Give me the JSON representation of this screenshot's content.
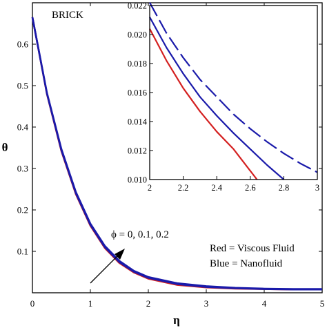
{
  "chart_data": [
    {
      "type": "line",
      "role": "main",
      "annotation_label": "BRICK",
      "xlabel": "η",
      "ylabel": "θ",
      "xlim": [
        0,
        5
      ],
      "ylim": [
        0,
        0.7
      ],
      "xticks": [
        "0",
        "1",
        "2",
        "3",
        "4",
        "5"
      ],
      "yticks": [
        "0.1",
        "0.2",
        "0.3",
        "0.4",
        "0.5",
        "0.6"
      ],
      "grid": false,
      "annotations": {
        "phi_label": "ϕ = 0, 0.1, 0.2",
        "legend_red": "Red = Viscous Fluid",
        "legend_blue": "Blue = Nanofluid"
      },
      "series": [
        {
          "color": "#d42020",
          "style": "solid",
          "x": [
            0,
            0.25,
            0.5,
            0.75,
            1.0,
            1.25,
            1.5,
            1.75,
            2.0,
            2.5,
            3.0,
            3.5,
            4.0,
            4.5,
            5.0
          ],
          "y": [
            0.665,
            0.48,
            0.342,
            0.238,
            0.162,
            0.108,
            0.072,
            0.049,
            0.034,
            0.019,
            0.013,
            0.01,
            0.009,
            0.008,
            0.008
          ]
        },
        {
          "color": "#1a1aaa",
          "style": "solid",
          "x": [
            0,
            0.25,
            0.5,
            0.75,
            1.0,
            1.25,
            1.5,
            1.75,
            2.0,
            2.5,
            3.0,
            3.5,
            4.0,
            4.5,
            5.0
          ],
          "y": [
            0.665,
            0.481,
            0.344,
            0.24,
            0.164,
            0.11,
            0.074,
            0.051,
            0.036,
            0.021,
            0.014,
            0.011,
            0.009,
            0.008,
            0.008
          ]
        },
        {
          "color": "#1a1aaa",
          "style": "solid",
          "x": [
            0,
            0.25,
            0.5,
            0.75,
            1.0,
            1.25,
            1.5,
            1.75,
            2.0,
            2.5,
            3.0,
            3.5,
            4.0,
            4.5,
            5.0
          ],
          "y": [
            0.665,
            0.483,
            0.347,
            0.243,
            0.167,
            0.113,
            0.077,
            0.053,
            0.038,
            0.023,
            0.016,
            0.012,
            0.01,
            0.009,
            0.009
          ]
        }
      ]
    },
    {
      "type": "line",
      "role": "inset",
      "xlim": [
        2,
        3
      ],
      "ylim": [
        0.01,
        0.022
      ],
      "xticks": [
        "2",
        "2.2",
        "2.4",
        "2.6",
        "2.8",
        "3"
      ],
      "yticks": [
        "0.010",
        "0.012",
        "0.014",
        "0.016",
        "0.018",
        "0.020",
        "0.022"
      ],
      "grid": false,
      "series": [
        {
          "color": "#d42020",
          "style": "solid",
          "x": [
            2.0,
            2.1,
            2.2,
            2.3,
            2.4,
            2.5,
            2.6,
            2.64
          ],
          "y": [
            0.0204,
            0.0182,
            0.0163,
            0.0147,
            0.0133,
            0.0121,
            0.0106,
            0.01
          ]
        },
        {
          "color": "#1a1aaa",
          "style": "solid",
          "x": [
            2.0,
            2.1,
            2.2,
            2.3,
            2.4,
            2.5,
            2.6,
            2.7,
            2.8
          ],
          "y": [
            0.0212,
            0.0191,
            0.0173,
            0.0157,
            0.0144,
            0.0132,
            0.0121,
            0.011,
            0.01
          ]
        },
        {
          "color": "#1a1aaa",
          "style": "dashed",
          "x": [
            2.0,
            2.1,
            2.2,
            2.3,
            2.4,
            2.5,
            2.6,
            2.7,
            2.8,
            2.9,
            3.0
          ],
          "y": [
            0.0222,
            0.0201,
            0.0184,
            0.0169,
            0.0157,
            0.0145,
            0.0135,
            0.0126,
            0.0118,
            0.0111,
            0.0105
          ]
        }
      ]
    }
  ]
}
